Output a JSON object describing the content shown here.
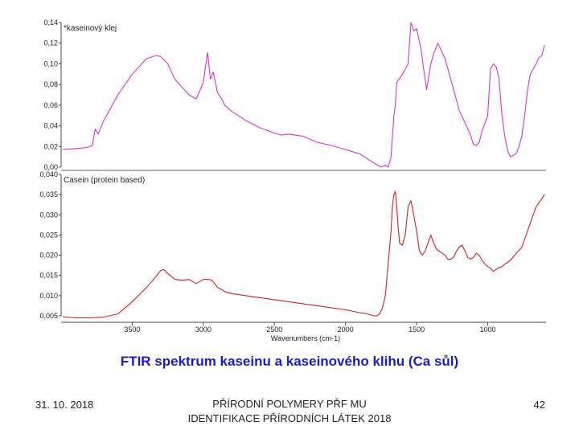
{
  "slide": {
    "caption": "FTIR spektrum kaseinu a kaseinového klihu (Ca sůl)",
    "footer_date": "31. 10. 2018",
    "footer_center": "PŘÍRODNÍ POLYMERY PŘF MU IDENTIFIKACE PŘÍRODNÍCH LÁTEK 2018",
    "page_number": "42"
  },
  "chart_data": [
    {
      "type": "line",
      "title": "",
      "series": [
        {
          "name": "*kaseinový klej",
          "color": "#d633d6",
          "x": [
            3990,
            3900,
            3820,
            3780,
            3760,
            3740,
            3700,
            3600,
            3500,
            3400,
            3330,
            3300,
            3250,
            3200,
            3100,
            3050,
            3000,
            2970,
            2950,
            2930,
            2900,
            2870,
            2850,
            2800,
            2700,
            2600,
            2500,
            2450,
            2400,
            2300,
            2200,
            2100,
            2000,
            1900,
            1800,
            1750,
            1720,
            1700,
            1680,
            1660,
            1650,
            1640,
            1620,
            1600,
            1560,
            1540,
            1520,
            1500,
            1470,
            1450,
            1430,
            1400,
            1380,
            1350,
            1300,
            1250,
            1200,
            1150,
            1120,
            1100,
            1080,
            1060,
            1040,
            1000,
            980,
            960,
            940,
            920,
            900,
            880,
            860,
            840,
            800,
            780,
            760,
            740,
            720,
            700,
            680,
            660,
            640,
            620,
            600
          ],
          "y": [
            0.017,
            0.018,
            0.019,
            0.021,
            0.037,
            0.032,
            0.045,
            0.07,
            0.09,
            0.105,
            0.108,
            0.107,
            0.1,
            0.085,
            0.07,
            0.066,
            0.082,
            0.111,
            0.085,
            0.092,
            0.072,
            0.066,
            0.06,
            0.054,
            0.045,
            0.038,
            0.033,
            0.031,
            0.032,
            0.03,
            0.024,
            0.021,
            0.017,
            0.013,
            0.004,
            0.0,
            0.002,
            0.0,
            0.01,
            0.05,
            0.06,
            0.082,
            0.086,
            0.09,
            0.1,
            0.14,
            0.132,
            0.134,
            0.115,
            0.095,
            0.075,
            0.1,
            0.11,
            0.12,
            0.105,
            0.08,
            0.055,
            0.04,
            0.031,
            0.022,
            0.021,
            0.024,
            0.035,
            0.05,
            0.095,
            0.1,
            0.097,
            0.085,
            0.05,
            0.03,
            0.016,
            0.01,
            0.013,
            0.02,
            0.03,
            0.05,
            0.075,
            0.09,
            0.095,
            0.1,
            0.106,
            0.108,
            0.118
          ]
        }
      ],
      "ylim": [
        0,
        0.14
      ],
      "yticks": [
        "0,00",
        "0,02",
        "0,04",
        "0,06",
        "0,08",
        "0,10",
        "0,12",
        "0,14"
      ]
    },
    {
      "type": "line",
      "title": "",
      "series": [
        {
          "name": "Casein (protein based)",
          "color": "#cc2222",
          "x": [
            3990,
            3900,
            3800,
            3700,
            3600,
            3500,
            3400,
            3350,
            3300,
            3280,
            3250,
            3200,
            3150,
            3100,
            3050,
            3000,
            2960,
            2940,
            2920,
            2900,
            2870,
            2850,
            2800,
            2700,
            2600,
            2500,
            2400,
            2300,
            2200,
            2100,
            2000,
            1900,
            1850,
            1800,
            1780,
            1760,
            1740,
            1720,
            1700,
            1690,
            1680,
            1670,
            1660,
            1650,
            1640,
            1630,
            1620,
            1600,
            1580,
            1560,
            1540,
            1520,
            1500,
            1480,
            1460,
            1440,
            1420,
            1400,
            1380,
            1360,
            1340,
            1320,
            1300,
            1280,
            1260,
            1240,
            1220,
            1200,
            1180,
            1160,
            1140,
            1120,
            1100,
            1080,
            1060,
            1040,
            1020,
            1000,
            980,
            960,
            940,
            920,
            900,
            880,
            860,
            840,
            820,
            800,
            780,
            760,
            740,
            720,
            700,
            680,
            660,
            640,
            620,
            600
          ],
          "y": [
            0.0048,
            0.0045,
            0.0045,
            0.0047,
            0.0055,
            0.0085,
            0.012,
            0.014,
            0.0162,
            0.0165,
            0.0155,
            0.014,
            0.0138,
            0.014,
            0.013,
            0.014,
            0.014,
            0.0138,
            0.013,
            0.012,
            0.0115,
            0.011,
            0.0105,
            0.01,
            0.0095,
            0.009,
            0.0085,
            0.008,
            0.0075,
            0.007,
            0.0065,
            0.0058,
            0.0055,
            0.005,
            0.005,
            0.0055,
            0.007,
            0.01,
            0.018,
            0.022,
            0.026,
            0.032,
            0.035,
            0.0358,
            0.032,
            0.027,
            0.023,
            0.0225,
            0.025,
            0.032,
            0.0335,
            0.03,
            0.026,
            0.021,
            0.02,
            0.021,
            0.023,
            0.025,
            0.023,
            0.0215,
            0.021,
            0.0205,
            0.02,
            0.019,
            0.019,
            0.0195,
            0.021,
            0.022,
            0.0225,
            0.021,
            0.0195,
            0.019,
            0.0195,
            0.0205,
            0.02,
            0.0188,
            0.0178,
            0.0172,
            0.0168,
            0.016,
            0.0165,
            0.017,
            0.0172,
            0.0178,
            0.0182,
            0.0188,
            0.0196,
            0.0205,
            0.0212,
            0.022,
            0.024,
            0.026,
            0.028,
            0.03,
            0.032,
            0.033,
            0.034,
            0.035
          ]
        }
      ],
      "ylim": [
        0.005,
        0.04
      ],
      "yticks": [
        "0,005",
        "0,010",
        "0,015",
        "0,020",
        "0,025",
        "0,030",
        "0,035",
        "0,040"
      ],
      "xlabel": "Wavenumbers (cm-1)",
      "xticks": [
        3500,
        3000,
        2500,
        2000,
        1500,
        1000
      ],
      "xlim": [
        4000,
        590
      ]
    }
  ]
}
